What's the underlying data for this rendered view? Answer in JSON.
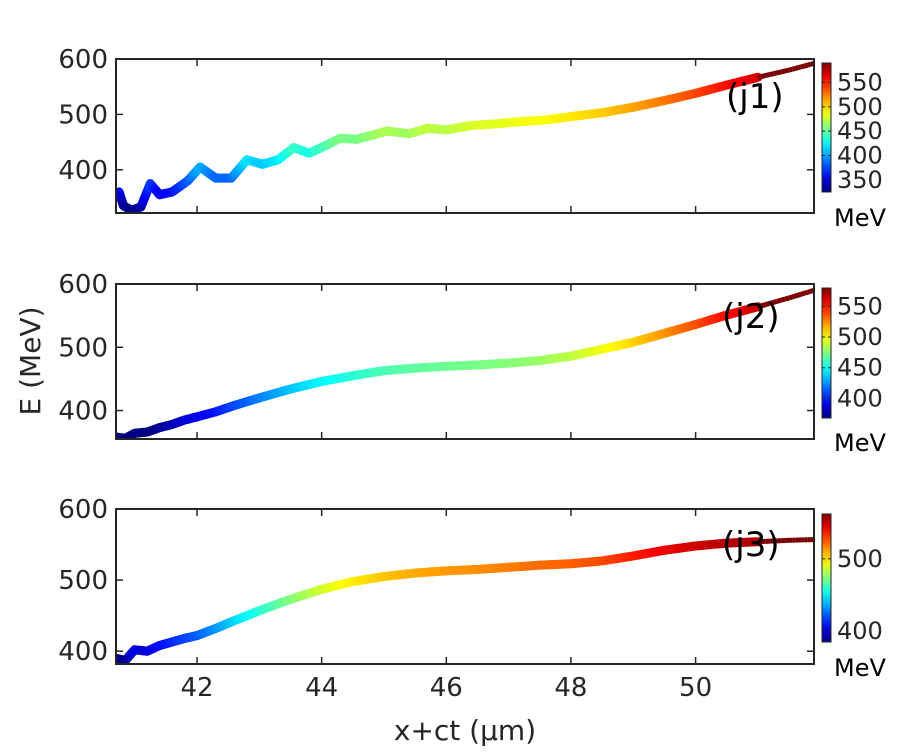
{
  "chart_data": [
    {
      "type": "scatter",
      "panel_label": "(j1)",
      "xlim": [
        40.7,
        51.9
      ],
      "ylim": [
        322,
        600
      ],
      "yticks": [
        400,
        500,
        600
      ],
      "colorbar": {
        "min": 325,
        "max": 590,
        "ticks": [
          350,
          400,
          450,
          500,
          550
        ],
        "unit": "MeV"
      },
      "curve": [
        [
          40.75,
          360
        ],
        [
          40.82,
          335
        ],
        [
          40.95,
          327
        ],
        [
          41.1,
          333
        ],
        [
          41.25,
          375
        ],
        [
          41.4,
          355
        ],
        [
          41.6,
          360
        ],
        [
          41.85,
          380
        ],
        [
          42.05,
          405
        ],
        [
          42.3,
          385
        ],
        [
          42.55,
          385
        ],
        [
          42.8,
          418
        ],
        [
          43.05,
          410
        ],
        [
          43.3,
          418
        ],
        [
          43.55,
          440
        ],
        [
          43.8,
          430
        ],
        [
          44.05,
          443
        ],
        [
          44.3,
          457
        ],
        [
          44.55,
          455
        ],
        [
          44.8,
          462
        ],
        [
          45.05,
          470
        ],
        [
          45.4,
          465
        ],
        [
          45.7,
          475
        ],
        [
          46.0,
          472
        ],
        [
          46.4,
          480
        ],
        [
          46.8,
          483
        ],
        [
          47.2,
          487
        ],
        [
          47.6,
          490
        ],
        [
          48.0,
          496
        ],
        [
          48.5,
          503
        ],
        [
          49.0,
          513
        ],
        [
          49.5,
          525
        ],
        [
          50.0,
          538
        ],
        [
          50.5,
          553
        ],
        [
          51.0,
          567
        ],
        [
          51.5,
          580
        ],
        [
          51.9,
          592
        ]
      ]
    },
    {
      "type": "scatter",
      "panel_label": "(j2)",
      "xlim": [
        40.7,
        51.9
      ],
      "ylim": [
        355,
        600
      ],
      "yticks": [
        400,
        500,
        600
      ],
      "colorbar": {
        "min": 368,
        "max": 580,
        "ticks": [
          400,
          450,
          500,
          550
        ],
        "unit": "MeV"
      },
      "curve": [
        [
          40.7,
          358
        ],
        [
          40.85,
          356
        ],
        [
          41.0,
          364
        ],
        [
          41.2,
          366
        ],
        [
          41.4,
          373
        ],
        [
          41.6,
          378
        ],
        [
          41.8,
          385
        ],
        [
          42.0,
          390
        ],
        [
          42.3,
          398
        ],
        [
          42.6,
          408
        ],
        [
          43.0,
          420
        ],
        [
          43.5,
          434
        ],
        [
          44.0,
          446
        ],
        [
          44.5,
          455
        ],
        [
          45.0,
          463
        ],
        [
          45.5,
          467
        ],
        [
          46.0,
          470
        ],
        [
          46.5,
          472
        ],
        [
          47.0,
          475
        ],
        [
          47.5,
          479
        ],
        [
          48.0,
          486
        ],
        [
          48.5,
          497
        ],
        [
          49.0,
          508
        ],
        [
          49.5,
          522
        ],
        [
          50.0,
          536
        ],
        [
          50.5,
          551
        ],
        [
          51.0,
          564
        ],
        [
          51.5,
          578
        ],
        [
          51.9,
          590
        ]
      ]
    },
    {
      "type": "scatter",
      "panel_label": "(j3)",
      "xlim": [
        40.7,
        51.9
      ],
      "ylim": [
        382,
        600
      ],
      "yticks": [
        400,
        500,
        600
      ],
      "colorbar": {
        "min": 385,
        "max": 562,
        "ticks": [
          400,
          500
        ],
        "unit": "MeV"
      },
      "curve": [
        [
          40.7,
          390
        ],
        [
          40.85,
          387
        ],
        [
          41.0,
          402
        ],
        [
          41.2,
          400
        ],
        [
          41.4,
          408
        ],
        [
          41.6,
          413
        ],
        [
          41.8,
          418
        ],
        [
          42.0,
          422
        ],
        [
          42.3,
          432
        ],
        [
          42.6,
          443
        ],
        [
          43.0,
          457
        ],
        [
          43.5,
          473
        ],
        [
          44.0,
          487
        ],
        [
          44.5,
          498
        ],
        [
          45.0,
          505
        ],
        [
          45.5,
          510
        ],
        [
          46.0,
          513
        ],
        [
          46.5,
          515
        ],
        [
          47.0,
          518
        ],
        [
          47.5,
          521
        ],
        [
          48.0,
          523
        ],
        [
          48.5,
          527
        ],
        [
          49.0,
          534
        ],
        [
          49.5,
          542
        ],
        [
          50.0,
          548
        ],
        [
          50.5,
          552
        ],
        [
          51.0,
          554
        ],
        [
          51.5,
          556
        ],
        [
          51.9,
          557
        ]
      ]
    }
  ],
  "xaxis": {
    "label": "x+ct (μm)",
    "ticks": [
      42,
      44,
      46,
      48,
      50
    ]
  },
  "yaxis": {
    "label": "E (MeV)"
  },
  "colors": {
    "axis": "#262626",
    "background": "#ffffff",
    "colormap": "jet"
  }
}
